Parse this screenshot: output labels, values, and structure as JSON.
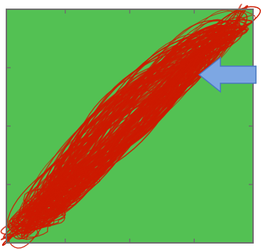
{
  "colors": {
    "page": "#ffffff",
    "plot_background": "#53c153",
    "frame": "#6e6e6e",
    "trace": "#cc1a00",
    "arrow_fill": "#7da7e3",
    "arrow_stroke": "#4a78c0"
  },
  "chart_data": {
    "type": "line",
    "title": "",
    "xlabel": "",
    "ylabel": "",
    "grid": false,
    "legend": "none",
    "x_ticks": 3,
    "y_ticks": 3,
    "xlim": [
      0,
      1
    ],
    "ylim": [
      0,
      1
    ],
    "series": [
      {
        "style": "tangled closed-loop trajectory",
        "spine": [
          [
            0.06,
            0.03
          ],
          [
            0.25,
            0.18
          ],
          [
            0.42,
            0.4
          ],
          [
            0.6,
            0.62
          ],
          [
            0.78,
            0.83
          ],
          [
            0.96,
            0.96
          ]
        ],
        "outer_extent": [
          [
            0.02,
            0.02
          ],
          [
            0.98,
            0.98
          ]
        ],
        "inner_loop": [
          [
            0.47,
            0.55
          ],
          [
            0.55,
            0.62
          ],
          [
            0.6,
            0.58
          ]
        ]
      }
    ],
    "annotations": [
      {
        "kind": "arrow",
        "points_to": [
          0.96,
          0.72
        ],
        "direction": "left"
      }
    ]
  }
}
